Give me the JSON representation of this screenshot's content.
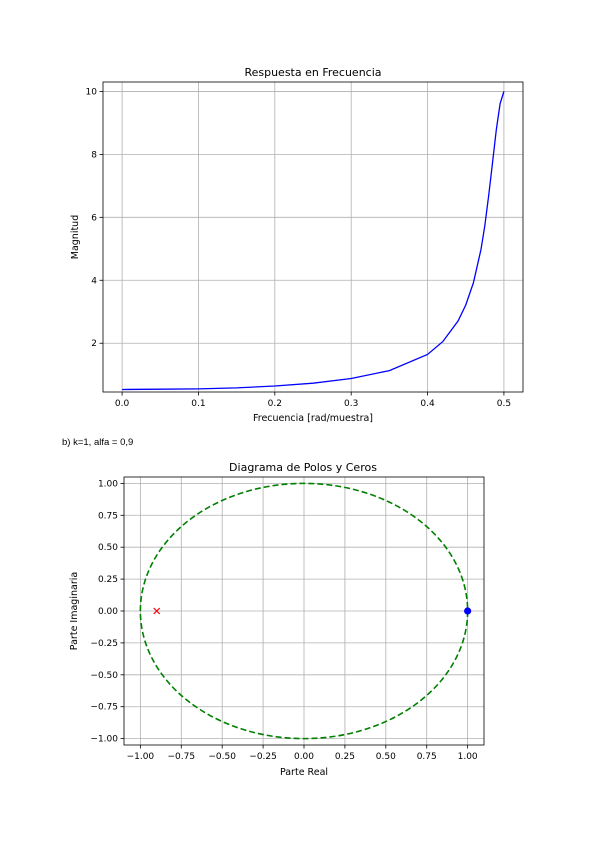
{
  "section_label": "b) k=1, alfa = 0,9",
  "colors": {
    "grid": "#b0b0b0",
    "freq_line": "#0000ff",
    "circle": "#008000",
    "pole": "#ff0000",
    "zero": "#0000ff"
  },
  "chart_data": [
    {
      "type": "line",
      "title": "Respuesta en Frecuencia",
      "xlabel": "Frecuencia [rad/muestra]",
      "ylabel": "Magnitud",
      "xlim": [
        -0.025,
        0.525
      ],
      "ylim": [
        0.45,
        10.3
      ],
      "xticks": [
        0.0,
        0.1,
        0.2,
        0.3,
        0.4,
        0.5
      ],
      "xtick_labels": [
        "0.0",
        "0.1",
        "0.2",
        "0.3",
        "0.4",
        "0.5"
      ],
      "yticks": [
        2,
        4,
        6,
        8,
        10
      ],
      "ytick_labels": [
        "2",
        "4",
        "6",
        "8",
        "10"
      ],
      "grid": true,
      "series": [
        {
          "x": [
            0.0,
            0.05,
            0.1,
            0.15,
            0.2,
            0.25,
            0.3,
            0.35,
            0.4,
            0.42,
            0.44,
            0.45,
            0.46,
            0.47,
            0.475,
            0.48,
            0.485,
            0.49,
            0.495,
            0.5
          ],
          "values": [
            0.53,
            0.54,
            0.55,
            0.58,
            0.64,
            0.73,
            0.88,
            1.13,
            1.64,
            2.05,
            2.71,
            3.21,
            3.92,
            4.98,
            5.73,
            6.67,
            7.73,
            8.78,
            9.61,
            10.0
          ]
        }
      ]
    },
    {
      "type": "scatter",
      "title": "Diagrama de Polos y Ceros",
      "xlabel": "Parte Real",
      "ylabel": "Parte Imaginaria",
      "xlim": [
        -1.1,
        1.1
      ],
      "ylim": [
        -1.05,
        1.05
      ],
      "xticks": [
        -1.0,
        -0.75,
        -0.5,
        -0.25,
        0.0,
        0.25,
        0.5,
        0.75,
        1.0
      ],
      "xtick_labels": [
        "−1.00",
        "−0.75",
        "−0.50",
        "−0.25",
        "0.00",
        "0.25",
        "0.50",
        "0.75",
        "1.00"
      ],
      "yticks": [
        -1.0,
        -0.75,
        -0.5,
        -0.25,
        0.0,
        0.25,
        0.5,
        0.75,
        1.0
      ],
      "ytick_labels": [
        "−1.00",
        "−0.75",
        "−0.50",
        "−0.25",
        "0.00",
        "0.25",
        "0.50",
        "0.75",
        "1.00"
      ],
      "grid": true,
      "unit_circle": true,
      "poles": [
        [
          -0.9,
          0.0
        ]
      ],
      "zeros": [
        [
          1.0,
          0.0
        ]
      ]
    }
  ]
}
